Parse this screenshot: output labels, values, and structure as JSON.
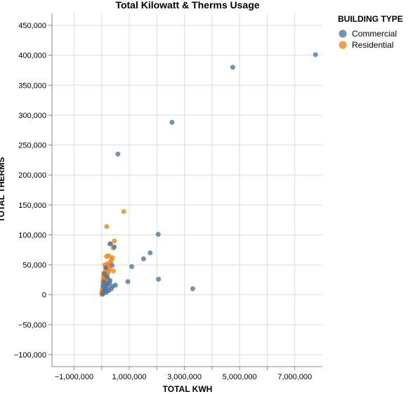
{
  "chart_data": {
    "type": "scatter",
    "title": "Total Kilowatt & Therms Usage",
    "xlabel": "TOTAL KWH",
    "ylabel": "TOTAL THERMS",
    "xlim": [
      -1800000,
      8000000
    ],
    "ylim": [
      -120000,
      470000
    ],
    "x_ticks": [
      -1000000,
      1000000,
      3000000,
      5000000,
      7000000
    ],
    "x_tick_labels": [
      "−1,000,000",
      "1,000,000",
      "3,000,000",
      "5,000,000",
      "7,000,000"
    ],
    "x_grid": [
      -1000000,
      0,
      1000000,
      2000000,
      3000000,
      4000000,
      5000000,
      6000000,
      7000000
    ],
    "y_ticks": [
      -100000,
      -50000,
      0,
      50000,
      100000,
      150000,
      200000,
      250000,
      300000,
      350000,
      400000,
      450000
    ],
    "y_tick_labels": [
      "−100,000",
      "−50,000",
      "0",
      "50,000",
      "100,000",
      "150,000",
      "200,000",
      "250,000",
      "300,000",
      "350,000",
      "400,000",
      "450,000"
    ],
    "grid": true,
    "legend": {
      "title": "BUILDING TYPE",
      "position": "top-right"
    },
    "series": [
      {
        "name": "Commercial",
        "color": "#4c78a8",
        "points": [
          [
            7750000,
            401000
          ],
          [
            4750000,
            380000
          ],
          [
            2550000,
            288000
          ],
          [
            590000,
            235000
          ],
          [
            2050000,
            101000
          ],
          [
            1760000,
            70000
          ],
          [
            1520000,
            60000
          ],
          [
            1090000,
            47000
          ],
          [
            3300000,
            10000
          ],
          [
            2060000,
            26000
          ],
          [
            950000,
            22000
          ],
          [
            500000,
            16000
          ],
          [
            320000,
            85000
          ],
          [
            460000,
            80000
          ],
          [
            380000,
            49000
          ],
          [
            290000,
            20000
          ],
          [
            350000,
            10000
          ],
          [
            260000,
            7000
          ],
          [
            150000,
            45000
          ],
          [
            200000,
            30000
          ],
          [
            180000,
            18000
          ],
          [
            120000,
            12000
          ],
          [
            90000,
            8000
          ],
          [
            60000,
            3000
          ],
          [
            40000,
            1000
          ],
          [
            230000,
            16000
          ],
          [
            300000,
            24000
          ],
          [
            400000,
            14000
          ],
          [
            100000,
            35000
          ],
          [
            70000,
            22000
          ],
          [
            50000,
            15000
          ],
          [
            130000,
            6000
          ],
          [
            210000,
            9000
          ],
          [
            170000,
            4000
          ]
        ]
      },
      {
        "name": "Residential",
        "color": "#f58518",
        "points": [
          [
            800000,
            139000
          ],
          [
            180000,
            114000
          ],
          [
            460000,
            90000
          ],
          [
            300000,
            85000
          ],
          [
            420000,
            78000
          ],
          [
            180000,
            64000
          ],
          [
            260000,
            65000
          ],
          [
            390000,
            62000
          ],
          [
            110000,
            50000
          ],
          [
            210000,
            52000
          ],
          [
            320000,
            54000
          ],
          [
            150000,
            45000
          ],
          [
            420000,
            40000
          ],
          [
            240000,
            38000
          ],
          [
            130000,
            33000
          ],
          [
            90000,
            28000
          ],
          [
            60000,
            25000
          ],
          [
            200000,
            35000
          ],
          [
            170000,
            30000
          ],
          [
            140000,
            26000
          ],
          [
            110000,
            22000
          ],
          [
            80000,
            18000
          ],
          [
            60000,
            15000
          ],
          [
            40000,
            12000
          ],
          [
            30000,
            9000
          ],
          [
            20000,
            6000
          ],
          [
            15000,
            4000
          ],
          [
            10000,
            2000
          ],
          [
            5000,
            1000
          ],
          [
            50000,
            20000
          ],
          [
            70000,
            11000
          ],
          [
            90000,
            14000
          ],
          [
            120000,
            17000
          ],
          [
            100000,
            8000
          ],
          [
            130000,
            10000
          ],
          [
            45000,
            7000
          ],
          [
            35000,
            3000
          ],
          [
            25000,
            2500
          ],
          [
            55000,
            5000
          ],
          [
            85000,
            4000
          ],
          [
            160000,
            20000
          ],
          [
            190000,
            24000
          ],
          [
            220000,
            27000
          ],
          [
            280000,
            43000
          ],
          [
            350000,
            58000
          ],
          [
            240000,
            48000
          ],
          [
            140000,
            41000
          ],
          [
            95000,
            32000
          ],
          [
            65000,
            30000
          ],
          [
            75000,
            36000
          ]
        ]
      }
    ]
  }
}
